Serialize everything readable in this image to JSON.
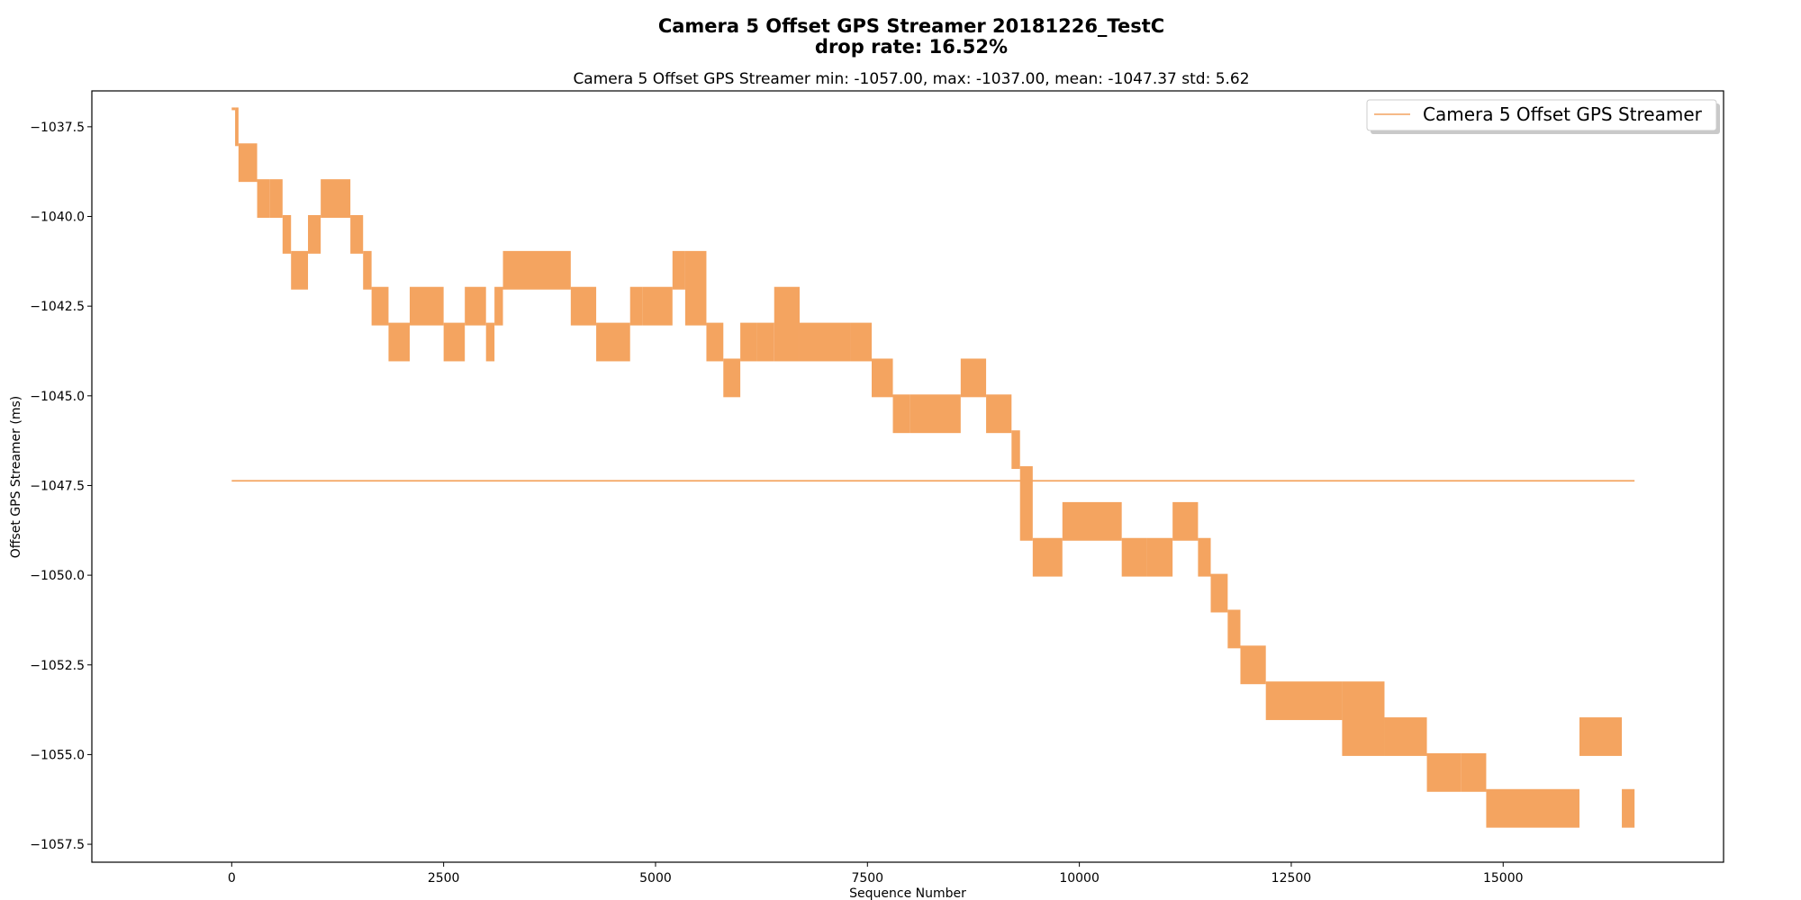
{
  "figure": {
    "title_line1": "Camera 5 Offset GPS Streamer 20181226_TestC",
    "title_line2": "drop rate: 16.52%"
  },
  "chart_data": {
    "type": "line",
    "title": "Camera 5 Offset GPS Streamer min: -1057.00, max: -1037.00, mean: -1047.37 std: 5.62",
    "xlabel": "Sequence Number",
    "ylabel": "Offset GPS Streamer (ms)",
    "xlim": [
      -1650,
      17600
    ],
    "ylim": [
      -1058,
      -1036.5
    ],
    "x_ticks": [
      0,
      2500,
      5000,
      7500,
      10000,
      12500,
      15000
    ],
    "x_tick_labels": [
      "0",
      "2500",
      "5000",
      "7500",
      "10000",
      "12500",
      "15000"
    ],
    "y_ticks": [
      -1037.5,
      -1040.0,
      -1042.5,
      -1045.0,
      -1047.5,
      -1050.0,
      -1052.5,
      -1055.0,
      -1057.5
    ],
    "y_tick_labels": [
      "−1037.5",
      "−1040.0",
      "−1042.5",
      "−1045.0",
      "−1047.5",
      "−1050.0",
      "−1052.5",
      "−1055.0",
      "−1057.5"
    ],
    "grid": false,
    "legend_position": "top-right",
    "color": "#f4a460",
    "series": [
      {
        "name": "Camera 5 Offset GPS Streamer",
        "segments": [
          [
            0,
            40,
            -1037,
            -1037
          ],
          [
            40,
            80,
            -1037,
            -1038
          ],
          [
            80,
            300,
            -1038,
            -1039
          ],
          [
            300,
            450,
            -1039,
            -1040
          ],
          [
            450,
            600,
            -1039,
            -1040
          ],
          [
            600,
            700,
            -1040,
            -1041
          ],
          [
            700,
            900,
            -1041,
            -1042
          ],
          [
            900,
            1050,
            -1040,
            -1041
          ],
          [
            1050,
            1400,
            -1039,
            -1040
          ],
          [
            1400,
            1550,
            -1040,
            -1041
          ],
          [
            1550,
            1650,
            -1041,
            -1042
          ],
          [
            1650,
            1850,
            -1042,
            -1043
          ],
          [
            1850,
            2100,
            -1043,
            -1044
          ],
          [
            2100,
            2500,
            -1042,
            -1043
          ],
          [
            2500,
            2750,
            -1043,
            -1044
          ],
          [
            2750,
            3000,
            -1042,
            -1043
          ],
          [
            3000,
            3100,
            -1043,
            -1044
          ],
          [
            3100,
            3200,
            -1042,
            -1043
          ],
          [
            3200,
            4000,
            -1041,
            -1042
          ],
          [
            4000,
            4300,
            -1042,
            -1043
          ],
          [
            4300,
            4700,
            -1043,
            -1044
          ],
          [
            4700,
            4850,
            -1042,
            -1043
          ],
          [
            4850,
            5200,
            -1042,
            -1043
          ],
          [
            5200,
            5350,
            -1041,
            -1042
          ],
          [
            5350,
            5600,
            -1041,
            -1043
          ],
          [
            5600,
            5800,
            -1043,
            -1044
          ],
          [
            5800,
            6000,
            -1044,
            -1045
          ],
          [
            6000,
            6200,
            -1043,
            -1044
          ],
          [
            6200,
            6400,
            -1043,
            -1044
          ],
          [
            6400,
            6700,
            -1042,
            -1044
          ],
          [
            6700,
            7300,
            -1043,
            -1044
          ],
          [
            7300,
            7550,
            -1043,
            -1044
          ],
          [
            7550,
            7800,
            -1044,
            -1045
          ],
          [
            7800,
            8000,
            -1045,
            -1046
          ],
          [
            8000,
            8400,
            -1045,
            -1046
          ],
          [
            8400,
            8600,
            -1045,
            -1046
          ],
          [
            8600,
            8900,
            -1044,
            -1045
          ],
          [
            8900,
            9200,
            -1045,
            -1046
          ],
          [
            9200,
            9300,
            -1046,
            -1047
          ],
          [
            9300,
            9450,
            -1047,
            -1049
          ],
          [
            9450,
            9800,
            -1049,
            -1050
          ],
          [
            9800,
            10500,
            -1048,
            -1049
          ],
          [
            10500,
            10800,
            -1049,
            -1050
          ],
          [
            10800,
            11100,
            -1049,
            -1050
          ],
          [
            11100,
            11400,
            -1048,
            -1049
          ],
          [
            11400,
            11550,
            -1049,
            -1050
          ],
          [
            11550,
            11750,
            -1050,
            -1051
          ],
          [
            11750,
            11900,
            -1051,
            -1052
          ],
          [
            11900,
            12200,
            -1052,
            -1053
          ],
          [
            12200,
            13100,
            -1053,
            -1054
          ],
          [
            13100,
            13600,
            -1053,
            -1055
          ],
          [
            13600,
            14100,
            -1054,
            -1055
          ],
          [
            14100,
            14500,
            -1055,
            -1056
          ],
          [
            14500,
            14800,
            -1055,
            -1056
          ],
          [
            14800,
            15900,
            -1056,
            -1057
          ],
          [
            15900,
            16400,
            -1054,
            -1055
          ],
          [
            16400,
            16550,
            -1056,
            -1057
          ]
        ]
      }
    ],
    "mean_line": {
      "value": -1047.37,
      "x_range": [
        0,
        16550
      ]
    }
  }
}
